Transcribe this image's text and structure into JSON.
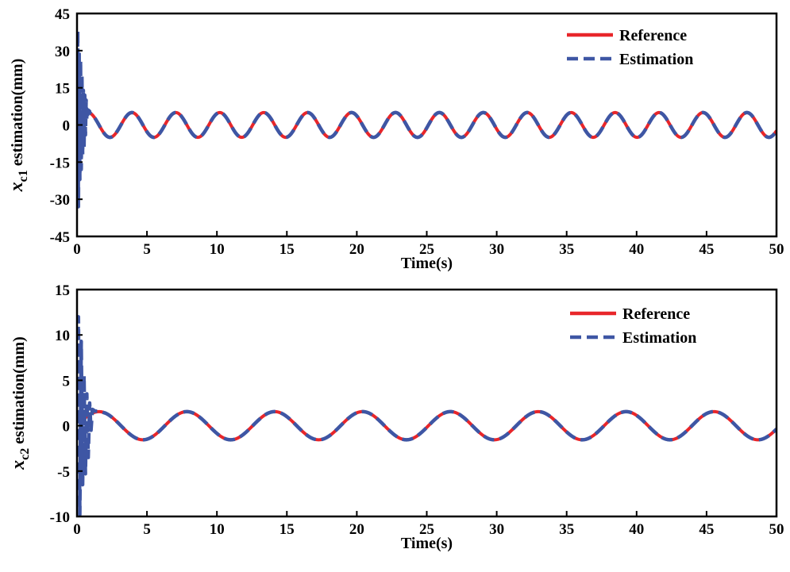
{
  "chart_data": [
    {
      "id": "xc1",
      "type": "line",
      "ylabel_main": "x",
      "ylabel_sub": "c1",
      "ylabel_rest": "estimation(mm)",
      "xlabel": "Time(s)",
      "xlim": [
        0,
        50
      ],
      "ylim": [
        -45,
        45
      ],
      "x_ticks": [
        0,
        5,
        10,
        15,
        20,
        25,
        30,
        35,
        40,
        45,
        50
      ],
      "x_tick_labels": [
        "0",
        "5",
        "10",
        "15",
        "20",
        "25",
        "30",
        "35",
        "40",
        "45",
        "50"
      ],
      "y_ticks": [
        45,
        30,
        15,
        0,
        -15,
        -30,
        -45
      ],
      "y_tick_labels": [
        "45",
        "30",
        "15",
        "0",
        "-15",
        "-30",
        "-45"
      ],
      "legend_position": "top-right",
      "grid": false,
      "series": [
        {
          "name": "Reference",
          "style": "solid",
          "color": "#e8262a",
          "amplitude": 5,
          "period": 3.14,
          "phase": 0.0,
          "x_start": 0.3,
          "x_end": 50
        },
        {
          "name": "Estimation",
          "style": "dashed",
          "color": "#3e56a4",
          "amplitude": 5,
          "period": 3.14,
          "phase": 0.0,
          "x_end": 50,
          "transient_x": [
            0.0,
            0.05,
            0.1,
            0.15,
            0.2,
            0.25,
            0.3,
            0.35,
            0.4,
            0.45,
            0.5,
            0.55,
            0.6,
            0.65,
            0.7,
            0.8,
            0.9
          ],
          "transient_y": [
            -2,
            38,
            -33,
            30,
            -22,
            26,
            -18,
            20,
            -12,
            14,
            -9,
            12,
            -4,
            10,
            2,
            6,
            5.5
          ]
        }
      ]
    },
    {
      "id": "xc2",
      "type": "line",
      "ylabel_main": "x",
      "ylabel_sub": "c2",
      "ylabel_rest": "estimation(mm)",
      "xlabel": "Time(s)",
      "xlim": [
        0,
        50
      ],
      "ylim": [
        -10,
        15
      ],
      "x_ticks": [
        0,
        5,
        10,
        15,
        20,
        25,
        30,
        35,
        40,
        45,
        50
      ],
      "x_tick_labels": [
        "0",
        "5",
        "10",
        "15",
        "20",
        "25",
        "30",
        "35",
        "40",
        "45",
        "50"
      ],
      "y_ticks": [
        15,
        10,
        5,
        0,
        -5,
        -10
      ],
      "y_tick_labels": [
        "15",
        "10",
        "5",
        "0",
        "-5",
        "-10"
      ],
      "legend_position": "top-right",
      "grid": false,
      "series": [
        {
          "name": "Reference",
          "style": "solid",
          "color": "#e8262a",
          "amplitude": 1.55,
          "period": 6.28,
          "phase": 0.0,
          "x_start": 0.2,
          "x_end": 50
        },
        {
          "name": "Estimation",
          "style": "dashed",
          "color": "#3e56a4",
          "amplitude": 1.55,
          "period": 6.28,
          "phase": 0.0,
          "x_end": 50,
          "transient_x": [
            0.0,
            0.1,
            0.2,
            0.3,
            0.4,
            0.5,
            0.6,
            0.7,
            0.8,
            0.9,
            1.0,
            1.1,
            1.3,
            1.6,
            2.0
          ],
          "transient_y": [
            0.5,
            12,
            -9.8,
            9.3,
            -6.5,
            5.5,
            -5.3,
            3.5,
            -3.5,
            2.5,
            -0.5,
            1.8,
            1.6,
            1.6,
            1.4
          ]
        }
      ]
    }
  ]
}
